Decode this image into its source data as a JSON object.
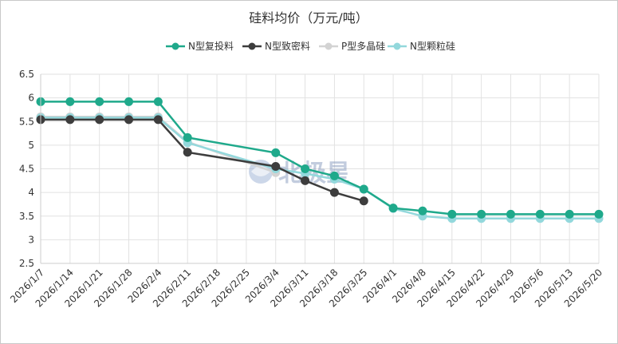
{
  "chart_data": {
    "type": "line",
    "title": "硅料均价（万元/吨）",
    "xlabel": "",
    "ylabel": "",
    "ylim": [
      2.5,
      6.5
    ],
    "yticks": [
      "2.5",
      "3",
      "3.5",
      "4",
      "4.5",
      "5",
      "5.5",
      "6",
      "6.5"
    ],
    "categories": [
      "2026/1/7",
      "2026/1/14",
      "2026/1/21",
      "2026/1/28",
      "2026/2/4",
      "2026/2/11",
      "2026/2/18",
      "2026/2/25",
      "2026/3/4",
      "2026/3/11",
      "2026/3/18",
      "2026/3/25",
      "2026/4/1",
      "2026/4/8",
      "2026/4/15",
      "2026/4/22",
      "2026/4/29",
      "2026/5/6",
      "2026/5/13",
      "2026/5/20"
    ],
    "grid": true,
    "legend_position": "top",
    "watermark": "北极星",
    "series": [
      {
        "name": "N型复投料",
        "color": "#1fa98b",
        "values": [
          5.92,
          5.92,
          5.92,
          5.92,
          5.92,
          5.16,
          null,
          null,
          4.84,
          4.5,
          4.35,
          4.07,
          3.67,
          3.61,
          3.54,
          3.54,
          3.54,
          3.54,
          3.54,
          3.54
        ]
      },
      {
        "name": "N型致密料",
        "color": "#3d3d3d",
        "values": [
          5.54,
          5.54,
          5.54,
          5.54,
          5.54,
          4.85,
          null,
          null,
          4.55,
          4.25,
          4.0,
          3.82,
          null,
          null,
          null,
          null,
          null,
          null,
          null,
          null
        ]
      },
      {
        "name": "P型多晶硅",
        "color": "#d3d3d3",
        "values": [
          5.6,
          5.6,
          5.6,
          5.6,
          5.6,
          5.07,
          null,
          null,
          4.42,
          null,
          null,
          null,
          null,
          null,
          null,
          null,
          null,
          null,
          null,
          null
        ]
      },
      {
        "name": "N型颗粒硅",
        "color": "#93d8dc",
        "values": [
          5.58,
          5.58,
          5.58,
          5.58,
          5.58,
          5.05,
          null,
          null,
          4.5,
          4.4,
          4.28,
          4.07,
          3.66,
          3.5,
          3.45,
          3.45,
          3.45,
          3.45,
          3.45,
          3.45
        ]
      }
    ]
  }
}
